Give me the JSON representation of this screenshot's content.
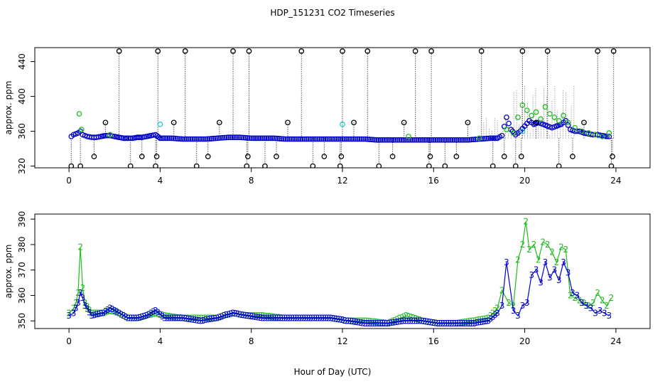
{
  "title": "HDP_151231  CO2 Timeseries",
  "x_label": "Hour of Day (UTC)",
  "colors": {
    "black": "#000000",
    "green": "#22bb22",
    "blue": "#0000cc",
    "cyan": "#22cccc"
  },
  "chart_data": [
    {
      "panel": "top",
      "type": "scatter",
      "ylabel": "approx. ppm",
      "xlim": [
        -1.5,
        25.5
      ],
      "ylim": [
        318,
        456
      ],
      "xticks": [
        0,
        4,
        8,
        12,
        16,
        20,
        24
      ],
      "yticks": [
        320,
        360,
        400,
        440
      ],
      "series": [
        {
          "marker": "circle",
          "color": "blue",
          "x": [
            0.1,
            0.2,
            0.3,
            0.4,
            0.5,
            0.6,
            0.7,
            0.8,
            1.0,
            1.2,
            1.4,
            1.6,
            1.8,
            2.0,
            2.2,
            2.4,
            2.6,
            2.8,
            3.0,
            3.2,
            3.4,
            3.6,
            3.8,
            4.0,
            4.5,
            5.0,
            5.5,
            6.0,
            6.5,
            7.0,
            7.5,
            8.0,
            8.5,
            9.0,
            9.5,
            10.0,
            10.5,
            11.0,
            11.5,
            12.0,
            12.5,
            13.0,
            13.5,
            14.0,
            14.5,
            15.0,
            15.5,
            16.0,
            16.5,
            17.0,
            17.5,
            18.0,
            18.5,
            18.8,
            19.0,
            19.2,
            19.4,
            19.6,
            19.8,
            20.0,
            20.2,
            20.4,
            20.6,
            20.8,
            21.0,
            21.2,
            21.4,
            21.6,
            21.8,
            22.0,
            22.2,
            22.4,
            22.6,
            22.8,
            23.0,
            23.2,
            23.4,
            23.6,
            23.8
          ],
          "y": [
            354,
            356,
            357,
            358,
            360,
            356,
            355,
            354,
            353,
            353,
            354,
            355,
            355,
            354,
            353,
            352,
            352,
            352,
            353,
            353,
            354,
            355,
            356,
            352,
            352,
            351,
            351,
            351,
            352,
            353,
            353,
            352,
            352,
            352,
            351,
            351,
            351,
            351,
            351,
            351,
            351,
            351,
            350,
            350,
            350,
            350,
            350,
            350,
            350,
            350,
            350,
            351,
            352,
            352,
            355,
            376,
            362,
            356,
            360,
            366,
            372,
            368,
            370,
            368,
            366,
            364,
            366,
            368,
            372,
            362,
            360,
            360,
            358,
            357,
            356,
            356,
            355,
            354,
            354
          ]
        },
        {
          "marker": "circle",
          "color": "green",
          "x": [
            0.45,
            0.55,
            1.8,
            14.9,
            18.0,
            19.2,
            19.5,
            19.7,
            19.9,
            20.1,
            20.3,
            20.5,
            20.7,
            20.9,
            21.1,
            21.3,
            21.5,
            21.7,
            21.9,
            22.2,
            22.5,
            22.8,
            23.1,
            23.4,
            23.7
          ],
          "y": [
            380,
            362,
            356,
            354,
            352,
            362,
            358,
            376,
            390,
            384,
            378,
            382,
            374,
            388,
            380,
            376,
            372,
            378,
            370,
            364,
            360,
            358,
            356,
            354,
            358
          ]
        },
        {
          "marker": "circle",
          "color": "cyan",
          "x": [
            4.0,
            12.0,
            19.9
          ],
          "y": [
            368,
            368,
            360
          ]
        },
        {
          "marker": "circle",
          "color": "black",
          "x": [
            0.1,
            0.5,
            1.1,
            1.6,
            2.2,
            2.7,
            3.2,
            3.8,
            3.85,
            3.9,
            4.6,
            5.1,
            5.6,
            6.1,
            6.6,
            7.2,
            7.8,
            7.85,
            7.9,
            8.6,
            9.1,
            9.6,
            10.2,
            10.7,
            11.2,
            11.9,
            11.95,
            12.0,
            12.5,
            13.1,
            13.6,
            14.2,
            14.7,
            15.2,
            15.8,
            15.85,
            15.9,
            16.5,
            17.0,
            17.5,
            18.1,
            18.6,
            19.1,
            19.6,
            19.85,
            19.9,
            20.5,
            21.0,
            21.5,
            22.1,
            22.6,
            23.2,
            23.8,
            23.85,
            23.9
          ],
          "y": [
            320,
            320,
            331,
            370,
            452,
            320,
            331,
            320,
            331,
            452,
            370,
            452,
            320,
            331,
            370,
            452,
            320,
            331,
            452,
            320,
            331,
            370,
            452,
            320,
            331,
            320,
            331,
            452,
            370,
            452,
            320,
            331,
            370,
            452,
            320,
            331,
            452,
            320,
            331,
            370,
            452,
            320,
            331,
            320,
            331,
            452,
            370,
            452,
            320,
            331,
            370,
            452,
            320,
            331,
            452
          ]
        }
      ]
    },
    {
      "panel": "bottom",
      "type": "line",
      "ylabel": "approx. ppm",
      "xlim": [
        -1.5,
        25.5
      ],
      "ylim": [
        347,
        392
      ],
      "xticks": [
        0,
        4,
        8,
        12,
        16,
        20,
        24
      ],
      "yticks": [
        350,
        360,
        370,
        380,
        390
      ],
      "series": [
        {
          "marker_text": "2",
          "color": "green",
          "x": [
            0.0,
            0.2,
            0.3,
            0.4,
            0.5,
            0.6,
            0.7,
            1.0,
            1.5,
            1.8,
            2.2,
            2.6,
            3.0,
            3.4,
            3.8,
            4.2,
            5.0,
            5.8,
            6.5,
            6.8,
            7.2,
            7.8,
            8.5,
            9.5,
            10.5,
            11.5,
            12.2,
            13.0,
            14.0,
            14.8,
            15.5,
            16.2,
            17.0,
            17.8,
            18.4,
            18.8,
            19.0,
            19.3,
            19.5,
            19.7,
            19.9,
            20.05,
            20.2,
            20.4,
            20.6,
            20.8,
            21.0,
            21.2,
            21.4,
            21.6,
            21.8,
            22.0,
            22.2,
            22.4,
            22.6,
            22.8,
            23.0,
            23.2,
            23.4,
            23.6,
            23.8
          ],
          "y": [
            353,
            355,
            357,
            361,
            379,
            363,
            357,
            353,
            353,
            354,
            353,
            351,
            351,
            352,
            353,
            352,
            351,
            351,
            351,
            352,
            353,
            352,
            352,
            351,
            351,
            351,
            350,
            350,
            349,
            352,
            350,
            349,
            349,
            350,
            351,
            355,
            362,
            357,
            356,
            374,
            380,
            389,
            378,
            380,
            374,
            381,
            380,
            377,
            373,
            379,
            378,
            360,
            359,
            358,
            357,
            356,
            357,
            361,
            358,
            356,
            359
          ]
        },
        {
          "marker_text": "3",
          "color": "blue",
          "x": [
            0.0,
            0.2,
            0.3,
            0.4,
            0.5,
            0.6,
            0.7,
            1.0,
            1.5,
            1.8,
            2.2,
            2.6,
            3.0,
            3.4,
            3.8,
            4.2,
            5.0,
            5.8,
            6.5,
            6.8,
            7.2,
            7.8,
            8.5,
            9.5,
            10.5,
            11.5,
            12.2,
            13.0,
            14.0,
            14.8,
            15.5,
            16.2,
            17.0,
            17.8,
            18.4,
            18.8,
            19.0,
            19.2,
            19.5,
            19.7,
            19.9,
            20.1,
            20.3,
            20.5,
            20.7,
            20.9,
            21.1,
            21.3,
            21.5,
            21.7,
            21.9,
            22.1,
            22.3,
            22.5,
            22.7,
            22.9,
            23.1,
            23.3,
            23.5,
            23.7
          ],
          "y": [
            352,
            353,
            355,
            357,
            361,
            359,
            356,
            352,
            353,
            355,
            353,
            351,
            351,
            352,
            354,
            351,
            351,
            350,
            351,
            352,
            353,
            352,
            351,
            351,
            351,
            351,
            350,
            349,
            349,
            350,
            350,
            349,
            349,
            349,
            350,
            353,
            356,
            373,
            354,
            352,
            356,
            357,
            368,
            370,
            365,
            373,
            367,
            370,
            366,
            373,
            369,
            361,
            360,
            357,
            356,
            355,
            353,
            354,
            353,
            352
          ]
        }
      ]
    }
  ]
}
